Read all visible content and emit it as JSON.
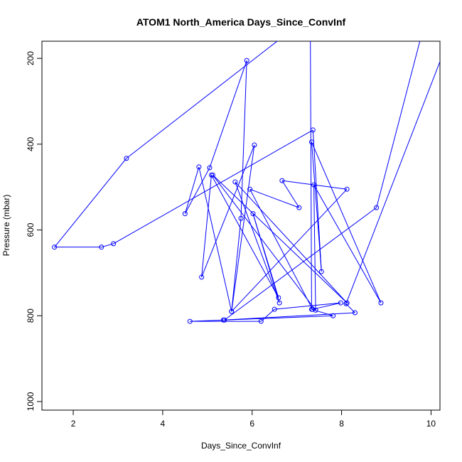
{
  "chart_data": {
    "type": "line",
    "title": "ATOM1 North_America Days_Since_ConvInf",
    "xlabel": "Days_Since_ConvInf",
    "ylabel": "Pressure (mbar)",
    "xlim": [
      1.3,
      10.2
    ],
    "ylim": [
      1020,
      160
    ],
    "y_reversed": true,
    "grid": false,
    "legend": "none",
    "x_ticks": [
      "2",
      "4",
      "6",
      "8",
      "10"
    ],
    "y_ticks": [
      "200",
      "400",
      "600",
      "800",
      "1000"
    ],
    "series": [
      {
        "color": "#0000ff",
        "marker": "open-circle",
        "points": [
          [
            10.6,
            100
          ],
          [
            8.1,
            772
          ],
          [
            8.3,
            793
          ],
          [
            5.36,
            810
          ],
          [
            4.61,
            813
          ],
          [
            6.2,
            813
          ],
          [
            6.5,
            785
          ],
          [
            7.98,
            770
          ],
          [
            7.35,
            785
          ],
          [
            5.95,
            505
          ],
          [
            7.05,
            548
          ],
          [
            6.67,
            485
          ],
          [
            8.12,
            505
          ],
          [
            5.54,
            790
          ],
          [
            5.75,
            573
          ],
          [
            5.88,
            205
          ],
          [
            5.05,
            455
          ],
          [
            4.5,
            562
          ],
          [
            4.81,
            453
          ],
          [
            5.54,
            790
          ],
          [
            6.05,
            402
          ],
          [
            4.87,
            710
          ],
          [
            5.09,
            472
          ],
          [
            6.59,
            758
          ],
          [
            6.02,
            562
          ],
          [
            6.61,
            770
          ],
          [
            5.62,
            488
          ],
          [
            8.12,
            770
          ],
          [
            5.12,
            472
          ],
          [
            7.42,
            787
          ],
          [
            7.38,
            495
          ],
          [
            8.88,
            770
          ],
          [
            7.33,
            395
          ],
          [
            7.55,
            697
          ],
          [
            7.36,
            367
          ],
          [
            2.9,
            632
          ],
          [
            2.63,
            640
          ],
          [
            1.58,
            640
          ],
          [
            3.19,
            433
          ],
          [
            7.3,
            100
          ],
          [
            7.33,
            785
          ],
          [
            7.81,
            800
          ],
          [
            5.38,
            810
          ],
          [
            8.78,
            548
          ],
          [
            9.9,
            100
          ]
        ]
      }
    ]
  }
}
